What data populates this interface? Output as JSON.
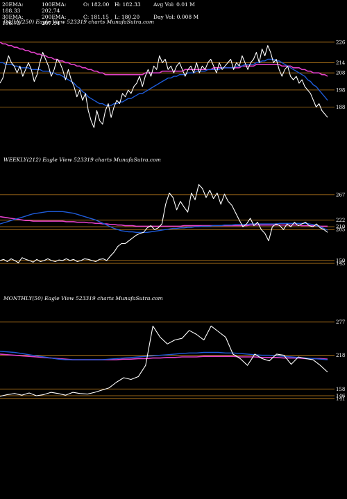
{
  "stats": {
    "ema20": "20EMA: 188.33",
    "ema100": "100EMA: 202.74",
    "open": "O: 182.00",
    "high": "H: 182.33",
    "avg_vol": "Avg Vol: 0.01 M",
    "ema30": "30EMA: 196.73",
    "ema200": "200EMA: 207.84",
    "close": "C: 181.15",
    "low": "L: 180.20",
    "day_vol": "Day Vol: 0.008 M"
  },
  "captions": {
    "daily": "DAILY(250) Eagle   View  523319 charts MunafaSutra.com",
    "weekly": "WEEKLY(212) Eagle   View  523319 charts MunafaSutra.com",
    "monthly": "MONTHLY(50) Eagle   View  523319 charts MunafaSutra.com"
  },
  "colors": {
    "background": "#000000",
    "price": "#ffffff",
    "ema_fast": "#1e5bd8",
    "ema_slow": "#e040c8",
    "level_line": "#c8841e"
  },
  "chart_data": [
    {
      "type": "line",
      "panel": "daily",
      "ylim": [
        172,
        232
      ],
      "levels": [
        226,
        214,
        208,
        198,
        188
      ],
      "level_labels": [
        "226",
        "214",
        "208",
        "198",
        "188"
      ],
      "price": [
        202,
        205,
        212,
        218,
        214,
        212,
        208,
        212,
        206,
        210,
        214,
        210,
        203,
        207,
        214,
        220,
        216,
        212,
        206,
        210,
        216,
        214,
        210,
        204,
        210,
        204,
        200,
        194,
        198,
        192,
        196,
        186,
        180,
        176,
        186,
        180,
        178,
        186,
        190,
        182,
        188,
        192,
        190,
        196,
        194,
        198,
        196,
        200,
        202,
        206,
        200,
        206,
        210,
        206,
        212,
        210,
        218,
        214,
        216,
        210,
        212,
        208,
        212,
        214,
        210,
        206,
        210,
        212,
        208,
        214,
        208,
        212,
        210,
        214,
        216,
        212,
        208,
        214,
        210,
        212,
        214,
        216,
        210,
        214,
        212,
        218,
        214,
        210,
        214,
        216,
        220,
        214,
        222,
        218,
        224,
        220,
        214,
        216,
        210,
        206,
        210,
        212,
        206,
        204,
        206,
        202,
        204,
        200,
        198,
        196,
        192,
        188,
        190,
        186,
        184,
        182
      ],
      "ema_fast": [
        214,
        214,
        213,
        213,
        213,
        212,
        212,
        211,
        211,
        211,
        211,
        210,
        210,
        210,
        210,
        209,
        209,
        209,
        208,
        208,
        207,
        207,
        206,
        205,
        204,
        203,
        202,
        200,
        199,
        197,
        196,
        194,
        193,
        192,
        191,
        190,
        190,
        189,
        189,
        189,
        190,
        190,
        191,
        191,
        192,
        193,
        193,
        194,
        195,
        196,
        196,
        197,
        198,
        199,
        200,
        201,
        202,
        203,
        204,
        205,
        205,
        206,
        206,
        207,
        207,
        207,
        208,
        208,
        208,
        209,
        209,
        209,
        209,
        210,
        210,
        210,
        210,
        210,
        211,
        211,
        211,
        211,
        211,
        212,
        212,
        212,
        213,
        213,
        213,
        213,
        214,
        214,
        215,
        215,
        216,
        216,
        216,
        215,
        215,
        214,
        213,
        212,
        211,
        210,
        209,
        208,
        207,
        206,
        204,
        203,
        201,
        200,
        198,
        196,
        194,
        192
      ],
      "ema_slow": [
        226,
        225,
        225,
        224,
        224,
        223,
        223,
        222,
        222,
        221,
        221,
        220,
        220,
        219,
        219,
        218,
        218,
        217,
        217,
        216,
        216,
        215,
        215,
        214,
        214,
        213,
        213,
        212,
        212,
        211,
        211,
        210,
        210,
        209,
        209,
        208,
        208,
        207,
        207,
        207,
        207,
        207,
        207,
        207,
        207,
        207,
        207,
        207,
        207,
        207,
        207,
        208,
        208,
        208,
        208,
        208,
        208,
        209,
        209,
        209,
        209,
        209,
        209,
        209,
        209,
        210,
        210,
        210,
        210,
        210,
        210,
        210,
        210,
        210,
        210,
        211,
        211,
        211,
        211,
        211,
        211,
        211,
        211,
        211,
        211,
        212,
        212,
        212,
        212,
        212,
        213,
        213,
        213,
        213,
        213,
        213,
        213,
        213,
        213,
        212,
        212,
        212,
        212,
        211,
        211,
        211,
        210,
        210,
        209,
        209,
        208,
        208,
        208,
        207,
        207,
        206
      ]
    },
    {
      "type": "line",
      "panel": "weekly",
      "ylim": [
        140,
        310
      ],
      "levels": [
        267,
        222,
        210,
        205,
        150,
        145
      ],
      "level_labels": [
        "267",
        "222",
        "210",
        "205",
        "150",
        "145"
      ],
      "price": [
        150,
        152,
        148,
        153,
        150,
        146,
        155,
        152,
        150,
        147,
        152,
        148,
        150,
        153,
        150,
        148,
        151,
        150,
        153,
        150,
        152,
        148,
        150,
        153,
        152,
        150,
        148,
        152,
        153,
        150,
        158,
        165,
        175,
        180,
        180,
        185,
        190,
        195,
        198,
        200,
        208,
        212,
        205,
        208,
        215,
        250,
        270,
        262,
        240,
        255,
        245,
        236,
        270,
        258,
        285,
        278,
        262,
        275,
        260,
        270,
        250,
        268,
        255,
        248,
        235,
        222,
        210,
        215,
        225,
        212,
        218,
        205,
        198,
        185,
        210,
        215,
        212,
        205,
        215,
        210,
        218,
        212,
        215,
        218,
        212,
        210,
        215,
        208,
        205,
        200
      ],
      "ema_fast": [
        215,
        217,
        219,
        221,
        223,
        225,
        227,
        229,
        231,
        233,
        234,
        235,
        236,
        237,
        237,
        237,
        237,
        237,
        236,
        235,
        234,
        232,
        230,
        228,
        226,
        224,
        222,
        219,
        216,
        213,
        210,
        207,
        205,
        203,
        202,
        201,
        201,
        200,
        200,
        200,
        200,
        201,
        202,
        203,
        204,
        205,
        206,
        207,
        207,
        208,
        208,
        209,
        209,
        210,
        210,
        211,
        211,
        211,
        212,
        212,
        212,
        213,
        213,
        213,
        214,
        214,
        214,
        214,
        215,
        215,
        215,
        215,
        215,
        215,
        215,
        215,
        216,
        216,
        216,
        216,
        216,
        216,
        216,
        216,
        215,
        214,
        212,
        210,
        207,
        204
      ],
      "ema_slow": [
        228,
        227,
        226,
        225,
        224,
        223,
        222,
        221,
        221,
        220,
        220,
        220,
        220,
        220,
        220,
        220,
        220,
        220,
        219,
        219,
        219,
        218,
        218,
        218,
        217,
        217,
        216,
        216,
        215,
        215,
        214,
        214,
        213,
        213,
        212,
        212,
        212,
        211,
        211,
        211,
        211,
        211,
        211,
        211,
        211,
        211,
        211,
        211,
        211,
        211,
        212,
        212,
        212,
        212,
        212,
        212,
        212,
        212,
        212,
        212,
        212,
        212,
        212,
        212,
        212,
        212,
        212,
        212,
        213,
        213,
        213,
        213,
        213,
        213,
        213,
        213,
        213,
        213,
        213,
        213,
        213,
        213,
        212,
        212,
        212,
        212,
        212,
        211,
        211,
        211
      ]
    },
    {
      "type": "line",
      "panel": "monthly",
      "ylim": [
        130,
        300
      ],
      "levels": [
        277,
        218,
        158,
        146,
        141
      ],
      "level_labels": [
        "277",
        "218",
        "158",
        "146",
        "141"
      ],
      "price": [
        145,
        148,
        150,
        147,
        151,
        146,
        148,
        152,
        150,
        147,
        152,
        150,
        149,
        152,
        156,
        160,
        170,
        178,
        175,
        180,
        200,
        270,
        250,
        238,
        245,
        248,
        262,
        255,
        245,
        270,
        260,
        250,
        220,
        212,
        200,
        220,
        212,
        208,
        220,
        218,
        202,
        215,
        212,
        210,
        200,
        188
      ],
      "ema_fast": [
        225,
        224,
        223,
        221,
        219,
        217,
        215,
        213,
        211,
        210,
        210,
        210,
        210,
        210,
        210,
        211,
        212,
        213,
        214,
        215,
        216,
        217,
        218,
        219,
        220,
        221,
        222,
        222,
        223,
        223,
        223,
        222,
        222,
        221,
        220,
        219,
        218,
        218,
        217,
        216,
        215,
        214,
        213,
        212,
        211,
        210
      ],
      "ema_slow": [
        220,
        219,
        218,
        217,
        216,
        215,
        214,
        213,
        212,
        211,
        210,
        210,
        210,
        210,
        210,
        210,
        210,
        211,
        211,
        212,
        212,
        213,
        213,
        214,
        214,
        215,
        215,
        215,
        216,
        216,
        216,
        216,
        216,
        215,
        215,
        215,
        214,
        214,
        214,
        213,
        213,
        213,
        212,
        212,
        212,
        211
      ]
    }
  ]
}
